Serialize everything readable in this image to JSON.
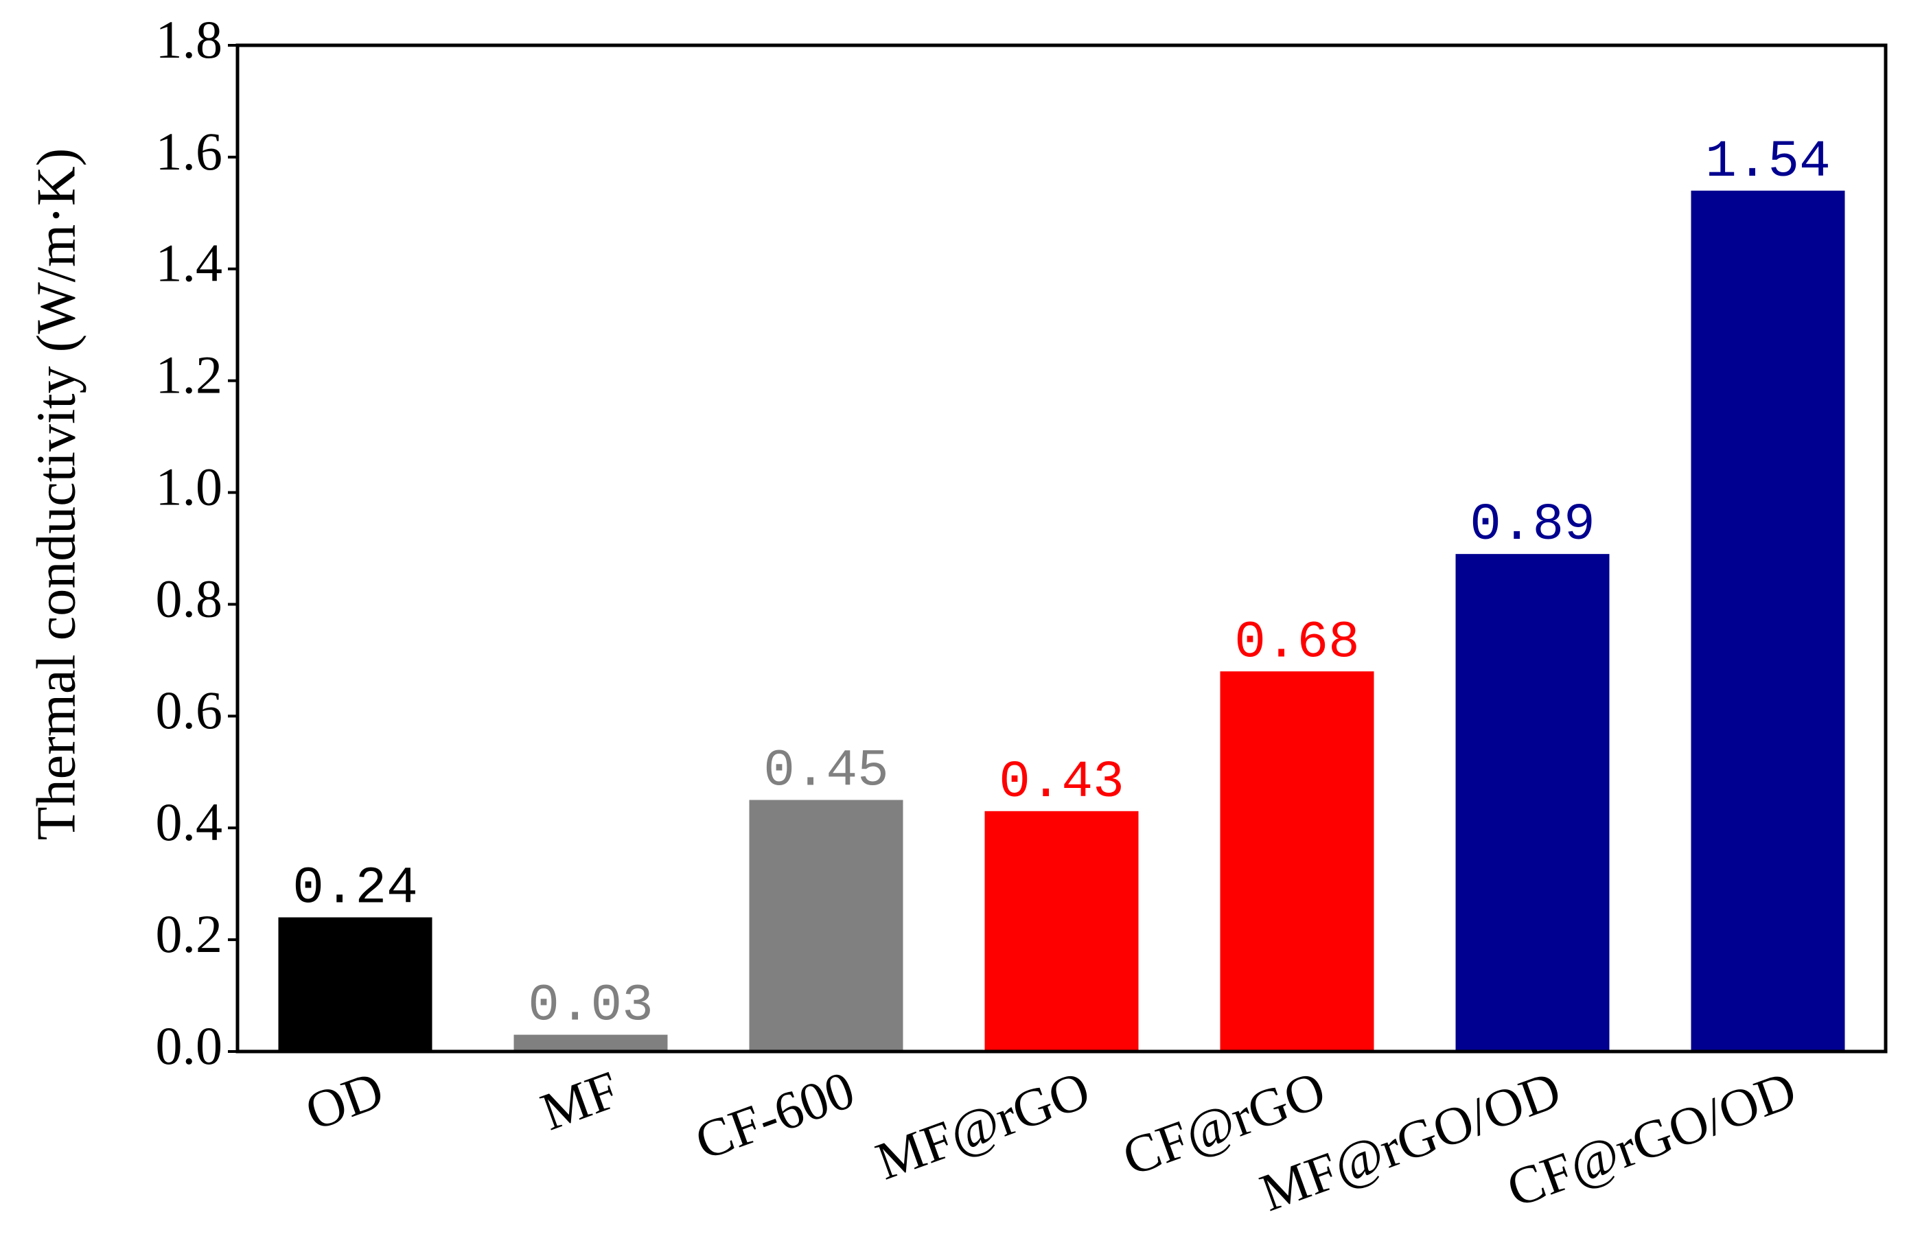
{
  "chart_data": {
    "type": "bar",
    "y_label": "Thermal conductivity (W/m·K)",
    "categories": [
      "OD",
      "MF",
      "CF-600",
      "MF@rGO",
      "CF@rGO",
      "MF@rGO/OD",
      "CF@rGO/OD"
    ],
    "values": [
      0.24,
      0.03,
      0.45,
      0.43,
      0.68,
      0.89,
      1.54
    ],
    "colors": [
      "#000000",
      "#808080",
      "#808080",
      "#ff0000",
      "#ff0000",
      "#000090",
      "#000090"
    ],
    "ylim": [
      0,
      1.8
    ],
    "yticks": [
      {
        "value": 0,
        "label": "0.0"
      },
      {
        "value": 0.2,
        "label": "0.2"
      },
      {
        "value": 0.4,
        "label": "0.4"
      },
      {
        "value": 0.6,
        "label": "0.6"
      },
      {
        "value": 0.8,
        "label": "0.8"
      },
      {
        "value": 1.0,
        "label": "1.0"
      },
      {
        "value": 1.2,
        "label": "1.2"
      },
      {
        "value": 1.4,
        "label": "1.4"
      },
      {
        "value": 1.6,
        "label": "1.6"
      },
      {
        "value": 1.8,
        "label": "1.8"
      }
    ],
    "grid": false
  }
}
